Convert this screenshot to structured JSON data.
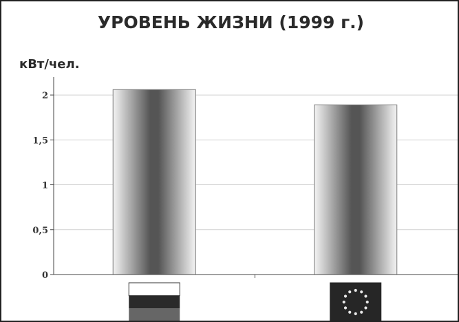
{
  "chart_data": {
    "type": "bar",
    "title": "УРОВЕНЬ ЖИЗНИ (1999 г.)",
    "ylabel": "кВт/чел.",
    "xlabel": "",
    "categories": [
      "Россия",
      "Европейский союз"
    ],
    "category_icons": [
      "russia-flag-icon",
      "eu-flag-icon"
    ],
    "values": [
      2.06,
      1.89
    ],
    "ylim": [
      0,
      2.2
    ],
    "yticks": [
      {
        "value": 0,
        "label": "0"
      },
      {
        "value": 0.5,
        "label": "0,5"
      },
      {
        "value": 1,
        "label": "1"
      },
      {
        "value": 1.5,
        "label": "1,5"
      },
      {
        "value": 2,
        "label": "2"
      }
    ],
    "grid": true,
    "legend": "none",
    "colors": {
      "bar_edge": "#777777",
      "bar_dark": "#555555",
      "bar_light": "#f4f4f4",
      "grid": "#d0d0d0",
      "axis": "#444444"
    }
  }
}
